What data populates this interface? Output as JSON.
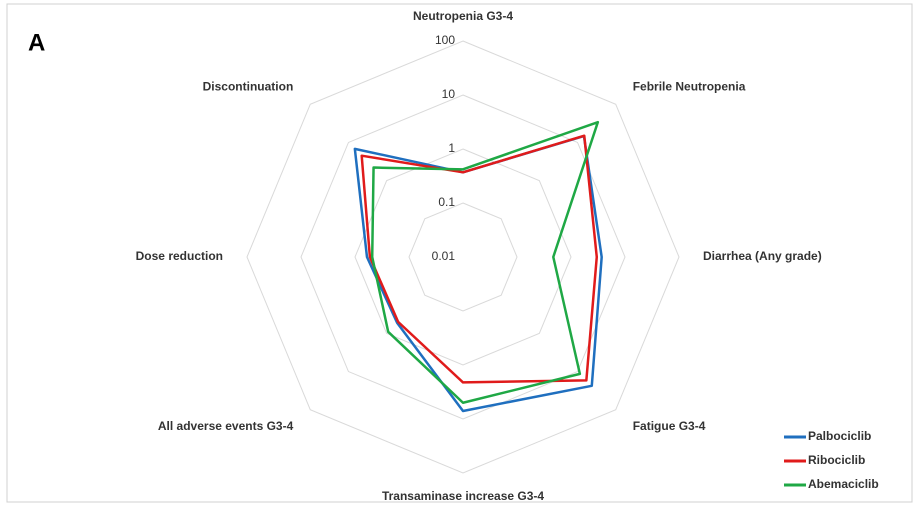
{
  "chart_data": {
    "type": "radar",
    "panel_label": "A",
    "categories": [
      "Neutropenia G3-4",
      "Febrile Neutropenia",
      "Diarrhea (Any grade)",
      "Fatigue G3-4",
      "Transaminase increase G3-4",
      "All adverse events G3-4",
      "Dose reduction",
      "Discontinuation"
    ],
    "series": [
      {
        "name": "Palbociclib",
        "color": "#1f6fbf",
        "values": [
          0.37,
          14.7,
          3.7,
          23.6,
          7.1,
          0.53,
          0.6,
          6.8
        ]
      },
      {
        "name": "Ribociclib",
        "color": "#e01b1b",
        "values": [
          0.37,
          15,
          3.0,
          17,
          2.1,
          0.5,
          0.53,
          4.5
        ]
      },
      {
        "name": "Abemaciclib",
        "color": "#1fa845",
        "values": [
          0.42,
          34,
          0.47,
          11.5,
          5,
          0.91,
          0.48,
          2.2
        ]
      }
    ],
    "ylim": [
      0.01,
      100
    ],
    "yticks": [
      0.01,
      0.1,
      1,
      10,
      100
    ],
    "log_scale": true,
    "grid": true,
    "legend": "lower right"
  }
}
